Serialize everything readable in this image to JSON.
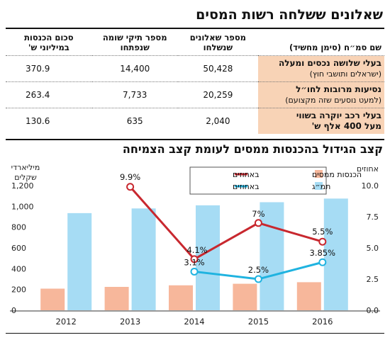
{
  "title": "שאלונים ששלחה רשות המסים",
  "table": {
    "columns": [
      "שם סמ״ח (סימן מחשיד)",
      "מספר שאלונים שנשלחו",
      "מספר תיקי שומה שנפתחו",
      "סכום הכנסות במיליוני ש'"
    ],
    "rows": [
      {
        "label": "בעלי שלושה נכסים ומעלה",
        "sub": "(ישראלים ותושבי חוץ)",
        "questionnaires": "50,428",
        "files": "14,400",
        "revenue": "370.9"
      },
      {
        "label": "נסיעות מרובות לחו״ל",
        "sub": "(למעט נוסעים שזה מקצועם)",
        "questionnaires": "20,259",
        "files": "7,733",
        "revenue": "263.4"
      },
      {
        "label": "בעלי רכב יוקרה בשווי",
        "sub": "מעל 400 אלף ש'",
        "questionnaires": "2,040",
        "files": "635",
        "revenue": "130.6"
      }
    ]
  },
  "subtitle": "קצב הגידול בהכנסות ממסים לעומת קצב הצמיחה",
  "chart_data": {
    "type": "bar",
    "categories": [
      "2012",
      "2013",
      "2014",
      "2015",
      "2016"
    ],
    "left_axis": {
      "label": "מיליארדי שקלים",
      "ticks": [
        "0",
        "200",
        "400",
        "600",
        "800",
        "1,000",
        "1,200"
      ],
      "range": [
        0,
        1200
      ]
    },
    "right_axis": {
      "label": "אחוזים",
      "ticks": [
        "0.0",
        "2.5",
        "5.0",
        "7.5",
        "10.0"
      ],
      "range": [
        0,
        10
      ]
    },
    "series": [
      {
        "name": "הכנסות ממסים",
        "type": "bar",
        "axis": "left",
        "color": "#f7b79b",
        "values": [
          208,
          225,
          240,
          255,
          270
        ]
      },
      {
        "name": "תמ״ג",
        "type": "bar",
        "axis": "left",
        "color": "#a6dcf4",
        "values": [
          935,
          980,
          1010,
          1040,
          1075
        ]
      },
      {
        "name": "באחוזים",
        "group": "הכנסות ממסים",
        "type": "line",
        "axis": "right",
        "color": "#c8282f",
        "x": [
          "2013",
          "2014",
          "2015",
          "2016"
        ],
        "values": [
          9.9,
          4.1,
          7.0,
          5.5
        ],
        "labels": [
          "9.9%",
          "4.1%",
          "7%",
          "5.5%"
        ]
      },
      {
        "name": "באחוזים",
        "group": "תמ״ג",
        "type": "line",
        "axis": "right",
        "color": "#1fb3e0",
        "x": [
          "2014",
          "2015",
          "2016"
        ],
        "values": [
          3.1,
          2.5,
          3.85
        ],
        "labels": [
          "3.1%",
          "2.5%",
          "3.85%"
        ]
      }
    ],
    "legend": [
      {
        "name": "הכנסות ממסים",
        "line_name": "באחוזים",
        "bar_color": "#f7b79b",
        "line_color": "#c8282f"
      },
      {
        "name": "תמ״ג",
        "line_name": "באחוזים",
        "bar_color": "#a6dcf4",
        "line_color": "#1fb3e0"
      }
    ],
    "legend_position": "top-center",
    "grid": false
  }
}
